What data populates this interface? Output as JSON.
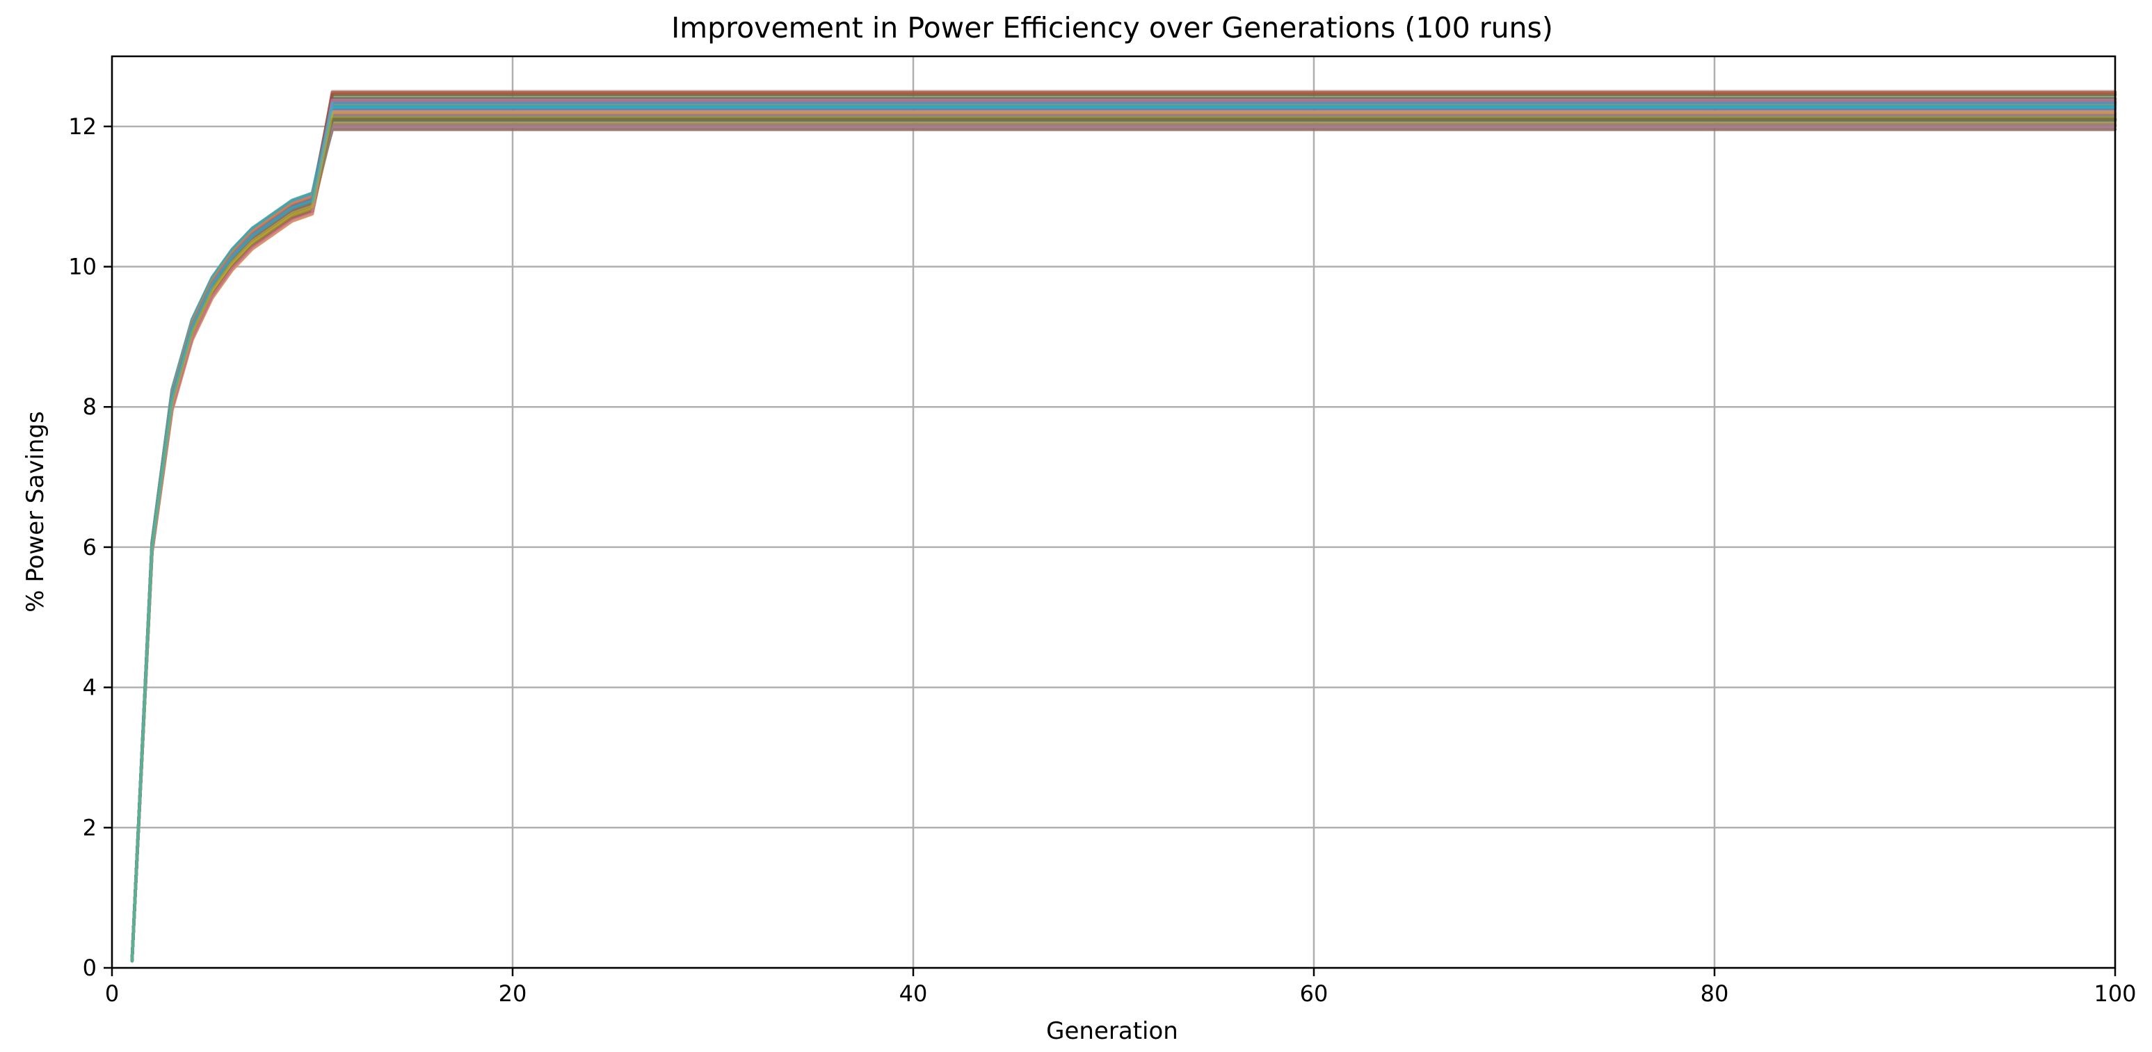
{
  "chart_data": {
    "type": "line",
    "title": "Improvement in Power Efficiency over Generations (100 runs)",
    "xlabel": "Generation",
    "ylabel": "% Power Savings",
    "xlim": [
      0,
      100
    ],
    "ylim": [
      0,
      13
    ],
    "xticks": [
      0,
      20,
      40,
      60,
      80,
      100
    ],
    "yticks": [
      0,
      2,
      4,
      6,
      8,
      10,
      12
    ],
    "grid": true,
    "legend": "none",
    "series_count": 100,
    "representative_curve": {
      "x": [
        1,
        2,
        3,
        4,
        5,
        6,
        7,
        8,
        9,
        10,
        11,
        12,
        100
      ],
      "y": [
        0.1,
        6.0,
        8.1,
        9.1,
        9.7,
        10.1,
        10.4,
        10.6,
        10.8,
        10.9,
        12.3,
        12.3,
        12.3
      ]
    },
    "final_value_range": [
      11.95,
      12.5
    ],
    "palette": [
      "#1f77b4",
      "#ff7f0e",
      "#2ca02c",
      "#d62728",
      "#9467bd",
      "#8c564b",
      "#e377c2",
      "#7f7f7f",
      "#bcbd22",
      "#17becf"
    ]
  }
}
